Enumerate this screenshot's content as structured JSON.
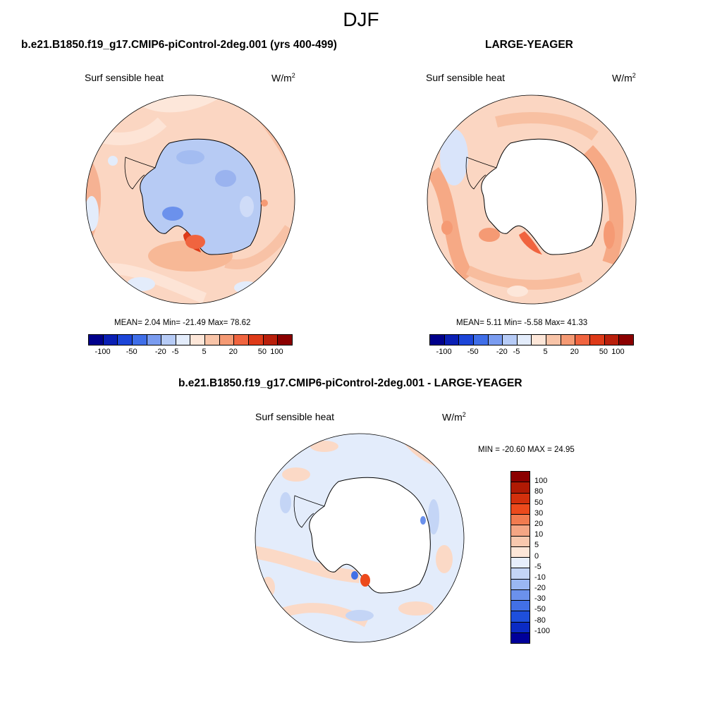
{
  "title": "DJF",
  "panels": {
    "left": {
      "case": "b.e21.B1850.f19_g17.CMIP6-piControl-2deg.001 (yrs 400-499)",
      "variable": "Surf sensible heat",
      "units_base": "W/m",
      "units_exp": "2",
      "stats": "MEAN=   2.04  Min= -21.49  Max=  78.62"
    },
    "right": {
      "case": "LARGE-YEAGER",
      "variable": "Surf sensible heat",
      "units_base": "W/m",
      "units_exp": "2",
      "stats": "MEAN=   5.11  Min=  -5.58  Max=  41.33"
    },
    "diff": {
      "case": "b.e21.B1850.f19_g17.CMIP6-piControl-2deg.001 - LARGE-YEAGER",
      "variable": "Surf sensible heat",
      "units_base": "W/m",
      "units_exp": "2",
      "stats": "MIN = -20.60 MAX =  24.95"
    }
  },
  "colorbar_horizontal": {
    "colors": [
      "#00008b",
      "#0a1fb4",
      "#1c45d8",
      "#3f6ee8",
      "#7a9cf0",
      "#b6cbf6",
      "#e3ecfb",
      "#fde6d8",
      "#f8c4a8",
      "#f59a74",
      "#f0643f",
      "#de3a18",
      "#b91f0b",
      "#8b0000"
    ],
    "ticks": [
      "-100",
      "-50",
      "-20",
      "-5",
      "5",
      "20",
      "50",
      "100"
    ]
  },
  "colorbar_vertical": {
    "colors": [
      "#8b0000",
      "#b01a04",
      "#d3300c",
      "#ec4a1c",
      "#f27b4f",
      "#f5a684",
      "#f8c8ae",
      "#fce6d8",
      "#e7eefb",
      "#c4d5f6",
      "#9ab7f2",
      "#6b91ec",
      "#4270e6",
      "#1e4fdc",
      "#0b2bc4",
      "#00009a"
    ],
    "ticks": [
      "100",
      "80",
      "50",
      "30",
      "20",
      "10",
      "5",
      "0",
      "-5",
      "-10",
      "-20",
      "-30",
      "-50",
      "-80",
      "-100"
    ]
  }
}
